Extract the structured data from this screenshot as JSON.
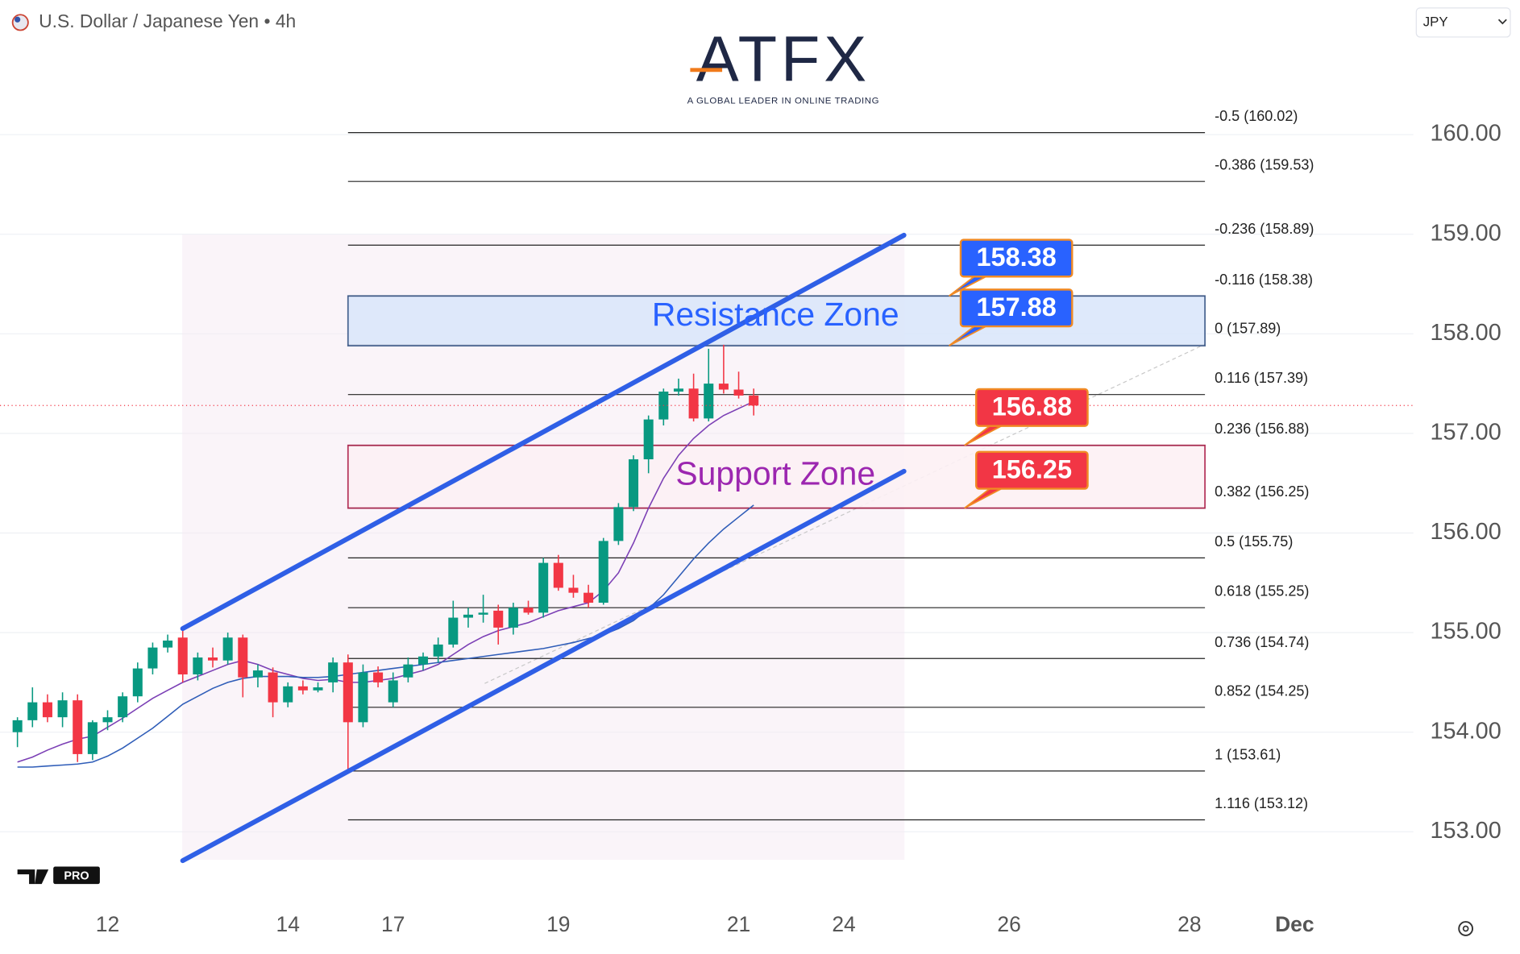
{
  "chart_data": {
    "type": "candlestick",
    "title": "U.S. Dollar / Japanese Yen • 4h",
    "currency": "JPY",
    "logo": "ATFX",
    "logo_tagline": "A GLOBAL LEADER IN ONLINE TRADING",
    "watermark": "PRO",
    "up_color": "#089981",
    "down_color": "#f23645",
    "categories": [
      null,
      null,
      null,
      null,
      null,
      null,
      "12",
      null,
      null,
      null,
      null,
      null,
      null,
      null,
      null,
      null,
      null,
      null,
      "14",
      null,
      null,
      null,
      null,
      null,
      null,
      "17",
      null,
      null,
      null,
      null,
      null,
      null,
      null,
      null,
      null,
      null,
      "19",
      null,
      null,
      null,
      null,
      null,
      null,
      null,
      null,
      null,
      null,
      null,
      "21",
      null,
      null,
      null,
      null,
      null,
      null,
      "24",
      null,
      null,
      null,
      null,
      null,
      null,
      null,
      null,
      null,
      null,
      "26",
      null,
      null,
      null,
      null,
      null,
      null,
      null,
      null,
      null,
      null,
      null,
      "28",
      null,
      null,
      null,
      null,
      null,
      null,
      "Dec"
    ],
    "open": [
      154.0,
      154.12,
      154.3,
      154.15,
      154.32,
      153.78,
      154.1,
      154.15,
      154.36,
      154.64,
      154.85,
      154.95,
      154.58,
      154.75,
      154.72,
      154.95,
      154.55,
      154.6,
      154.3,
      154.46,
      154.42,
      154.5,
      154.7,
      154.1,
      154.6,
      154.3,
      154.55,
      154.68,
      154.76,
      154.88,
      155.15,
      155.18,
      155.22,
      155.05,
      155.25,
      155.2,
      155.7,
      155.45,
      155.4,
      155.3,
      155.92,
      156.26,
      156.74,
      157.14,
      157.42,
      157.45,
      157.15,
      157.5,
      157.44,
      157.38,
      null,
      null,
      null,
      null,
      null,
      null,
      null,
      null,
      null,
      null,
      null,
      null,
      null,
      null,
      null,
      null,
      null,
      null,
      null,
      null,
      null,
      null,
      null,
      null,
      null,
      null,
      null,
      null,
      null,
      null,
      null,
      null,
      null,
      null,
      null,
      null
    ],
    "high": [
      154.15,
      154.45,
      154.38,
      154.4,
      154.38,
      154.12,
      154.22,
      154.4,
      154.7,
      154.9,
      154.98,
      155.02,
      154.8,
      154.85,
      155.0,
      154.98,
      154.68,
      154.65,
      154.5,
      154.52,
      154.5,
      154.75,
      154.78,
      154.68,
      154.66,
      154.6,
      154.75,
      154.8,
      154.95,
      155.32,
      155.25,
      155.38,
      155.28,
      155.3,
      155.32,
      155.75,
      155.78,
      155.58,
      155.48,
      155.95,
      156.3,
      156.78,
      157.18,
      157.45,
      157.55,
      157.6,
      157.85,
      157.89,
      157.62,
      157.45,
      null,
      null,
      null,
      null,
      null,
      null,
      null,
      null,
      null,
      null,
      null,
      null,
      null,
      null,
      null,
      null,
      null,
      null,
      null,
      null,
      null,
      null,
      null,
      null,
      null,
      null,
      null,
      null,
      null,
      null,
      null,
      null,
      null,
      null,
      null,
      null
    ],
    "low": [
      153.85,
      154.05,
      154.1,
      154.05,
      153.7,
      153.72,
      154.02,
      154.1,
      154.3,
      154.58,
      154.8,
      154.5,
      154.52,
      154.65,
      154.68,
      154.35,
      154.45,
      154.15,
      154.25,
      154.38,
      154.4,
      154.4,
      153.61,
      154.05,
      154.45,
      154.25,
      154.5,
      154.62,
      154.7,
      154.85,
      155.05,
      155.1,
      154.88,
      154.98,
      155.18,
      155.15,
      155.42,
      155.35,
      155.25,
      155.28,
      155.88,
      156.22,
      156.6,
      157.08,
      157.38,
      157.12,
      157.12,
      157.4,
      157.35,
      157.18,
      null,
      null,
      null,
      null,
      null,
      null,
      null,
      null,
      null,
      null,
      null,
      null,
      null,
      null,
      null,
      null,
      null,
      null,
      null,
      null,
      null,
      null,
      null,
      null,
      null,
      null,
      null,
      null,
      null,
      null,
      null,
      null,
      null,
      null,
      null,
      null
    ],
    "close": [
      154.12,
      154.3,
      154.15,
      154.32,
      153.78,
      154.1,
      154.15,
      154.36,
      154.64,
      154.85,
      154.92,
      154.58,
      154.75,
      154.72,
      154.95,
      154.55,
      154.62,
      154.3,
      154.46,
      154.42,
      154.45,
      154.7,
      154.1,
      154.6,
      154.5,
      154.52,
      154.68,
      154.76,
      154.88,
      155.15,
      155.18,
      155.2,
      155.05,
      155.25,
      155.2,
      155.7,
      155.45,
      155.4,
      155.3,
      155.92,
      156.26,
      156.74,
      157.14,
      157.42,
      157.45,
      157.15,
      157.5,
      157.44,
      157.38,
      157.28,
      null,
      null,
      null,
      null,
      null,
      null,
      null,
      null,
      null,
      null,
      null,
      null,
      null,
      null,
      null,
      null,
      null,
      null,
      null,
      null,
      null,
      null,
      null,
      null,
      null,
      null,
      null,
      null,
      null,
      null,
      null,
      null,
      null,
      null,
      null,
      null
    ],
    "moving_averages": [
      {
        "color": "#7b3fb5",
        "values": [
          153.7,
          153.75,
          153.82,
          153.88,
          153.93,
          153.96,
          154.05,
          154.14,
          154.24,
          154.34,
          154.42,
          154.5,
          154.56,
          154.62,
          154.68,
          154.72,
          154.68,
          154.62,
          154.58,
          154.54,
          154.52,
          154.53,
          154.5,
          154.5,
          154.52,
          154.54,
          154.58,
          154.62,
          154.68,
          154.78,
          154.88,
          154.96,
          155.02,
          155.06,
          155.1,
          155.16,
          155.22,
          155.26,
          155.3,
          155.42,
          155.6,
          155.9,
          156.25,
          156.55,
          156.78,
          156.95,
          157.08,
          157.18,
          157.25,
          157.32,
          null,
          null,
          null,
          null,
          null,
          null,
          null,
          null,
          null,
          null,
          null,
          null,
          null,
          null,
          null,
          null,
          null,
          null,
          null,
          null,
          null,
          null,
          null,
          null,
          null,
          null,
          null,
          null,
          null,
          null,
          null,
          null,
          null,
          null,
          null,
          null
        ]
      },
      {
        "color": "#2f5db8",
        "values": [
          153.65,
          153.65,
          153.66,
          153.67,
          153.68,
          153.7,
          153.76,
          153.84,
          153.94,
          154.04,
          154.16,
          154.28,
          154.36,
          154.44,
          154.5,
          154.54,
          154.56,
          154.56,
          154.56,
          154.55,
          154.55,
          154.56,
          154.58,
          154.6,
          154.62,
          154.64,
          154.66,
          154.68,
          154.7,
          154.72,
          154.74,
          154.76,
          154.78,
          154.8,
          154.82,
          154.84,
          154.87,
          154.9,
          154.94,
          154.98,
          155.04,
          155.12,
          155.24,
          155.38,
          155.56,
          155.74,
          155.9,
          156.04,
          156.16,
          156.28,
          null,
          null,
          null,
          null,
          null,
          null,
          null,
          null,
          null,
          null,
          null,
          null,
          null,
          null,
          null,
          null,
          null,
          null,
          null,
          null,
          null,
          null,
          null,
          null,
          null,
          null,
          null,
          null,
          null,
          null,
          null,
          null,
          null,
          null,
          null,
          null
        ]
      }
    ],
    "ylim": [
      152.3,
      161.35
    ],
    "yticks": [
      {
        "value": 153,
        "label": "153.00"
      },
      {
        "value": 154,
        "label": "154.00"
      },
      {
        "value": 155,
        "label": "155.00"
      },
      {
        "value": 156,
        "label": "156.00"
      },
      {
        "value": 157,
        "label": "157.00"
      },
      {
        "value": 158,
        "label": "158.00"
      },
      {
        "value": 159,
        "label": "159.00"
      },
      {
        "value": 160,
        "label": "160.00"
      }
    ],
    "grid": true,
    "fib_levels": [
      {
        "value": 160.02,
        "label": "-0.5 (160.02)"
      },
      {
        "value": 159.53,
        "label": "-0.386 (159.53)"
      },
      {
        "value": 158.89,
        "label": "-0.236 (158.89)"
      },
      {
        "value": 158.38,
        "label": "-0.116 (158.38)"
      },
      {
        "value": 157.89,
        "label": "0 (157.89)"
      },
      {
        "value": 157.39,
        "label": "0.116 (157.39)"
      },
      {
        "value": 156.88,
        "label": "0.236 (156.88)"
      },
      {
        "value": 156.25,
        "label": "0.382 (156.25)"
      },
      {
        "value": 155.75,
        "label": "0.5 (155.75)"
      },
      {
        "value": 155.25,
        "label": "0.618 (155.25)"
      },
      {
        "value": 154.74,
        "label": "0.736 (154.74)"
      },
      {
        "value": 154.25,
        "label": "0.852 (154.25)"
      },
      {
        "value": 153.61,
        "label": "1 (153.61)"
      },
      {
        "value": 153.12,
        "label": "1.116 (153.12)"
      }
    ],
    "zones": [
      {
        "label": "Resistance Zone",
        "low": 157.88,
        "high": 158.38,
        "fill": "#dbe7fb",
        "stroke": "#3d5a8a",
        "text_color": "#2962ff"
      },
      {
        "label": "Support Zone",
        "low": 156.25,
        "high": 156.88,
        "fill": "#fdf1f5",
        "stroke": "#b0264f",
        "text_color": "#9c27b0"
      }
    ],
    "price_labels": [
      {
        "value": 158.38,
        "color": "#2962ff"
      },
      {
        "value": 157.88,
        "color": "#2962ff"
      },
      {
        "value": 156.88,
        "color": "#f23645"
      },
      {
        "value": 156.25,
        "color": "#f23645"
      }
    ],
    "trendlines": [
      {
        "color": "#2f5fe6",
        "x": [
          11,
          59
        ],
        "y": [
          155.04,
          158.99
        ]
      },
      {
        "color": "#2f5fe6",
        "x": [
          11,
          59
        ],
        "y": [
          152.71,
          156.62
        ]
      }
    ]
  }
}
